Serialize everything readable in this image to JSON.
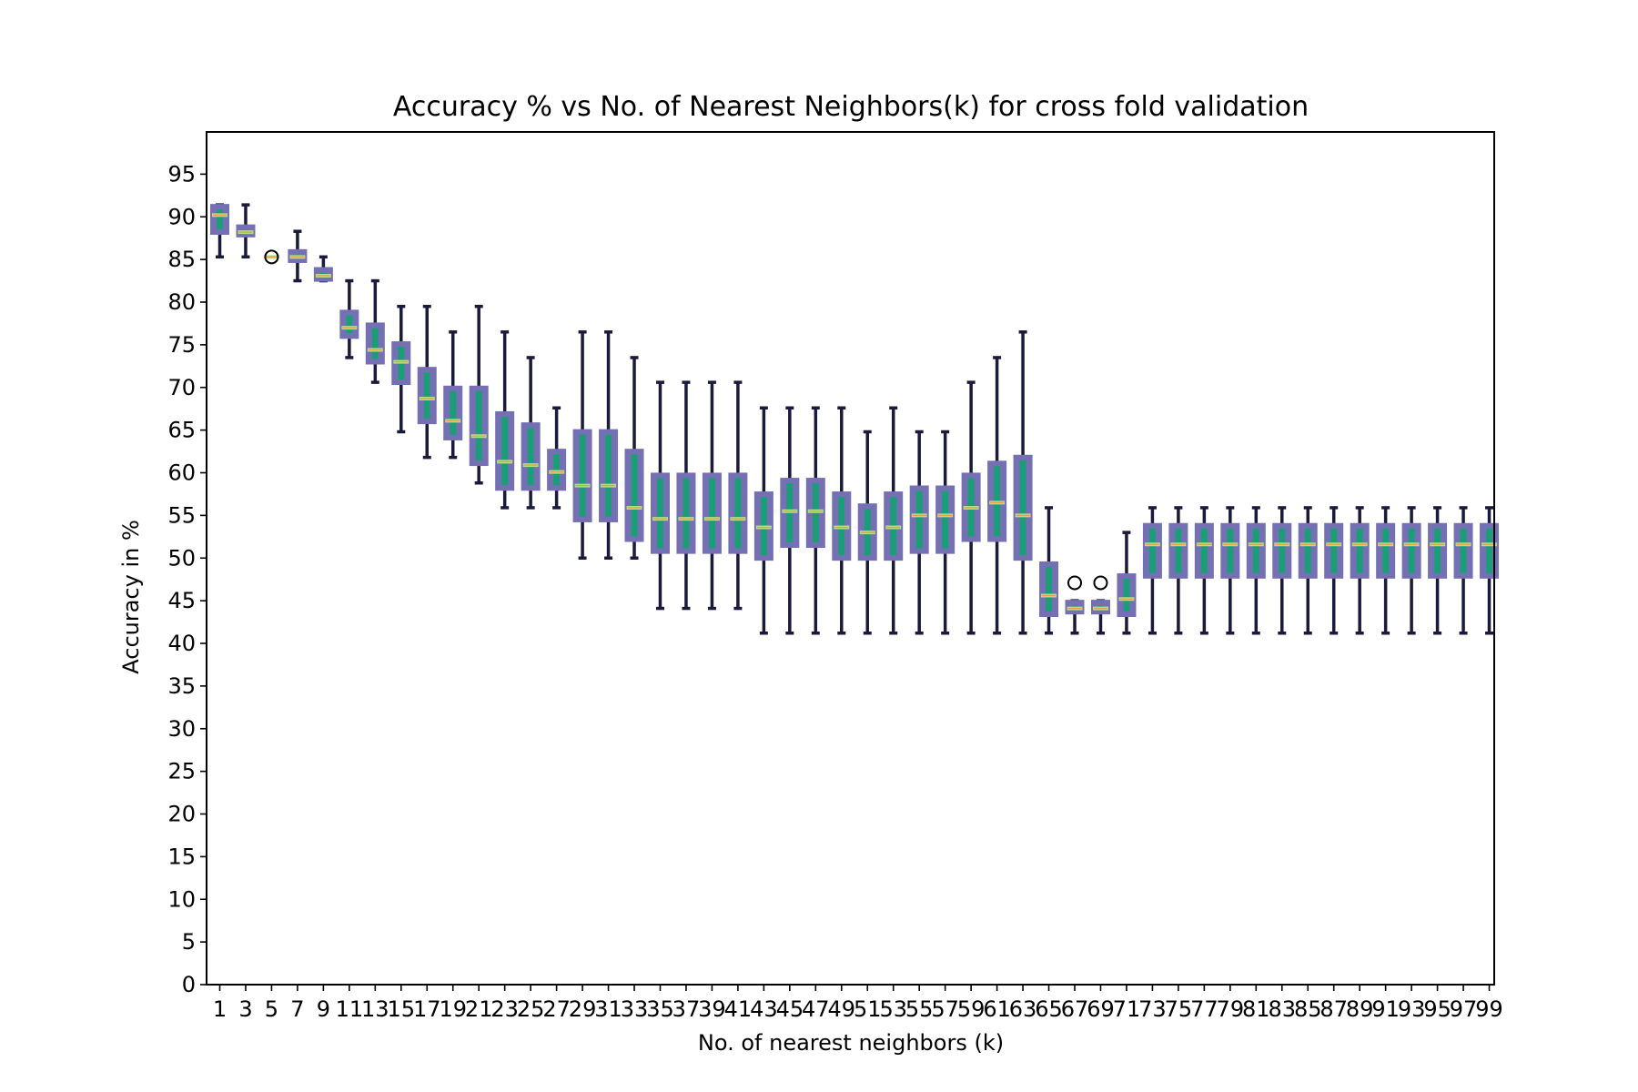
{
  "chart_data": {
    "type": "box",
    "title": "Accuracy % vs No. of Nearest Neighbors(k) for cross fold validation",
    "xlabel": "No. of nearest neighbors (k)",
    "ylabel": "Accuracy in %",
    "ylim": [
      0,
      100
    ],
    "y_ticks": [
      0,
      5,
      10,
      15,
      20,
      25,
      30,
      35,
      40,
      45,
      50,
      55,
      60,
      65,
      70,
      75,
      80,
      85,
      90,
      95
    ],
    "categories": [
      1,
      3,
      5,
      7,
      9,
      11,
      13,
      15,
      17,
      19,
      21,
      23,
      25,
      27,
      29,
      31,
      33,
      35,
      37,
      39,
      41,
      43,
      45,
      47,
      49,
      51,
      53,
      55,
      57,
      59,
      61,
      63,
      65,
      67,
      69,
      71,
      73,
      75,
      77,
      79,
      81,
      83,
      85,
      87,
      89,
      91,
      93,
      95,
      97,
      99
    ],
    "boxes": [
      {
        "k": 1,
        "whisker_low": 85.3,
        "q1": 88.0,
        "median": 90.2,
        "q3": 91.4,
        "whisker_high": 91.4,
        "outliers": []
      },
      {
        "k": 3,
        "whisker_low": 85.3,
        "q1": 87.7,
        "median": 88.2,
        "q3": 89.0,
        "whisker_high": 91.4,
        "outliers": []
      },
      {
        "k": 5,
        "whisker_low": 85.3,
        "q1": 85.3,
        "median": 85.3,
        "q3": 85.3,
        "whisker_high": 85.3,
        "outliers": [
          85.3
        ]
      },
      {
        "k": 7,
        "whisker_low": 82.5,
        "q1": 84.7,
        "median": 85.3,
        "q3": 86.1,
        "whisker_high": 88.3,
        "outliers": []
      },
      {
        "k": 9,
        "whisker_low": 82.5,
        "q1": 82.5,
        "median": 83.1,
        "q3": 84.0,
        "whisker_high": 85.3,
        "outliers": []
      },
      {
        "k": 11,
        "whisker_low": 73.5,
        "q1": 75.8,
        "median": 77.0,
        "q3": 79.0,
        "whisker_high": 82.5,
        "outliers": []
      },
      {
        "k": 13,
        "whisker_low": 70.6,
        "q1": 72.8,
        "median": 74.4,
        "q3": 77.5,
        "whisker_high": 82.5,
        "outliers": []
      },
      {
        "k": 15,
        "whisker_low": 64.8,
        "q1": 70.4,
        "median": 73.0,
        "q3": 75.3,
        "whisker_high": 79.5,
        "outliers": []
      },
      {
        "k": 17,
        "whisker_low": 61.8,
        "q1": 65.8,
        "median": 68.7,
        "q3": 72.3,
        "whisker_high": 79.5,
        "outliers": []
      },
      {
        "k": 19,
        "whisker_low": 61.8,
        "q1": 63.9,
        "median": 66.1,
        "q3": 70.1,
        "whisker_high": 76.5,
        "outliers": []
      },
      {
        "k": 21,
        "whisker_low": 58.8,
        "q1": 60.9,
        "median": 64.3,
        "q3": 70.1,
        "whisker_high": 79.5,
        "outliers": []
      },
      {
        "k": 23,
        "whisker_low": 55.9,
        "q1": 58.0,
        "median": 61.3,
        "q3": 67.1,
        "whisker_high": 76.5,
        "outliers": []
      },
      {
        "k": 25,
        "whisker_low": 55.9,
        "q1": 58.0,
        "median": 60.9,
        "q3": 65.8,
        "whisker_high": 73.5,
        "outliers": []
      },
      {
        "k": 27,
        "whisker_low": 55.9,
        "q1": 58.0,
        "median": 60.1,
        "q3": 62.7,
        "whisker_high": 67.6,
        "outliers": []
      },
      {
        "k": 29,
        "whisker_low": 50.0,
        "q1": 54.3,
        "median": 58.5,
        "q3": 65.0,
        "whisker_high": 76.5,
        "outliers": []
      },
      {
        "k": 31,
        "whisker_low": 50.0,
        "q1": 54.3,
        "median": 58.5,
        "q3": 65.0,
        "whisker_high": 76.5,
        "outliers": []
      },
      {
        "k": 33,
        "whisker_low": 50.0,
        "q1": 52.0,
        "median": 55.9,
        "q3": 62.7,
        "whisker_high": 73.5,
        "outliers": []
      },
      {
        "k": 35,
        "whisker_low": 44.1,
        "q1": 50.6,
        "median": 54.6,
        "q3": 59.9,
        "whisker_high": 70.6,
        "outliers": []
      },
      {
        "k": 37,
        "whisker_low": 44.1,
        "q1": 50.6,
        "median": 54.6,
        "q3": 59.9,
        "whisker_high": 70.6,
        "outliers": []
      },
      {
        "k": 39,
        "whisker_low": 44.1,
        "q1": 50.6,
        "median": 54.6,
        "q3": 59.9,
        "whisker_high": 70.6,
        "outliers": []
      },
      {
        "k": 41,
        "whisker_low": 44.1,
        "q1": 50.6,
        "median": 54.6,
        "q3": 59.9,
        "whisker_high": 70.6,
        "outliers": []
      },
      {
        "k": 43,
        "whisker_low": 41.2,
        "q1": 49.8,
        "median": 53.6,
        "q3": 57.7,
        "whisker_high": 67.6,
        "outliers": []
      },
      {
        "k": 45,
        "whisker_low": 41.2,
        "q1": 51.3,
        "median": 55.5,
        "q3": 59.3,
        "whisker_high": 67.6,
        "outliers": []
      },
      {
        "k": 47,
        "whisker_low": 41.2,
        "q1": 51.3,
        "median": 55.5,
        "q3": 59.3,
        "whisker_high": 67.6,
        "outliers": []
      },
      {
        "k": 49,
        "whisker_low": 41.2,
        "q1": 49.8,
        "median": 53.6,
        "q3": 57.7,
        "whisker_high": 67.6,
        "outliers": []
      },
      {
        "k": 51,
        "whisker_low": 41.2,
        "q1": 49.8,
        "median": 53.0,
        "q3": 56.3,
        "whisker_high": 64.8,
        "outliers": []
      },
      {
        "k": 53,
        "whisker_low": 41.2,
        "q1": 49.8,
        "median": 53.6,
        "q3": 57.7,
        "whisker_high": 67.6,
        "outliers": []
      },
      {
        "k": 55,
        "whisker_low": 41.2,
        "q1": 50.6,
        "median": 55.0,
        "q3": 58.4,
        "whisker_high": 64.8,
        "outliers": []
      },
      {
        "k": 57,
        "whisker_low": 41.2,
        "q1": 50.6,
        "median": 55.0,
        "q3": 58.4,
        "whisker_high": 64.8,
        "outliers": []
      },
      {
        "k": 59,
        "whisker_low": 41.2,
        "q1": 52.0,
        "median": 55.9,
        "q3": 59.9,
        "whisker_high": 70.6,
        "outliers": []
      },
      {
        "k": 61,
        "whisker_low": 41.2,
        "q1": 52.0,
        "median": 56.5,
        "q3": 61.3,
        "whisker_high": 73.5,
        "outliers": []
      },
      {
        "k": 63,
        "whisker_low": 41.2,
        "q1": 49.8,
        "median": 55.0,
        "q3": 62.0,
        "whisker_high": 76.5,
        "outliers": []
      },
      {
        "k": 65,
        "whisker_low": 41.2,
        "q1": 43.2,
        "median": 45.6,
        "q3": 49.5,
        "whisker_high": 55.9,
        "outliers": []
      },
      {
        "k": 67,
        "whisker_low": 41.2,
        "q1": 43.5,
        "median": 44.1,
        "q3": 45.0,
        "whisker_high": 45.0,
        "outliers": [
          47.1
        ]
      },
      {
        "k": 69,
        "whisker_low": 41.2,
        "q1": 43.5,
        "median": 44.1,
        "q3": 45.0,
        "whisker_high": 45.0,
        "outliers": [
          47.1
        ]
      },
      {
        "k": 71,
        "whisker_low": 41.2,
        "q1": 43.2,
        "median": 45.2,
        "q3": 48.1,
        "whisker_high": 53.0,
        "outliers": []
      },
      {
        "k": 73,
        "whisker_low": 41.2,
        "q1": 47.7,
        "median": 51.6,
        "q3": 54.0,
        "whisker_high": 55.9,
        "outliers": []
      },
      {
        "k": 75,
        "whisker_low": 41.2,
        "q1": 47.7,
        "median": 51.6,
        "q3": 54.0,
        "whisker_high": 55.9,
        "outliers": []
      },
      {
        "k": 77,
        "whisker_low": 41.2,
        "q1": 47.7,
        "median": 51.6,
        "q3": 54.0,
        "whisker_high": 55.9,
        "outliers": []
      },
      {
        "k": 79,
        "whisker_low": 41.2,
        "q1": 47.7,
        "median": 51.6,
        "q3": 54.0,
        "whisker_high": 55.9,
        "outliers": []
      },
      {
        "k": 81,
        "whisker_low": 41.2,
        "q1": 47.7,
        "median": 51.6,
        "q3": 54.0,
        "whisker_high": 55.9,
        "outliers": []
      },
      {
        "k": 83,
        "whisker_low": 41.2,
        "q1": 47.7,
        "median": 51.6,
        "q3": 54.0,
        "whisker_high": 55.9,
        "outliers": []
      },
      {
        "k": 85,
        "whisker_low": 41.2,
        "q1": 47.7,
        "median": 51.6,
        "q3": 54.0,
        "whisker_high": 55.9,
        "outliers": []
      },
      {
        "k": 87,
        "whisker_low": 41.2,
        "q1": 47.7,
        "median": 51.6,
        "q3": 54.0,
        "whisker_high": 55.9,
        "outliers": []
      },
      {
        "k": 89,
        "whisker_low": 41.2,
        "q1": 47.7,
        "median": 51.6,
        "q3": 54.0,
        "whisker_high": 55.9,
        "outliers": []
      },
      {
        "k": 91,
        "whisker_low": 41.2,
        "q1": 47.7,
        "median": 51.6,
        "q3": 54.0,
        "whisker_high": 55.9,
        "outliers": []
      },
      {
        "k": 93,
        "whisker_low": 41.2,
        "q1": 47.7,
        "median": 51.6,
        "q3": 54.0,
        "whisker_high": 55.9,
        "outliers": []
      },
      {
        "k": 95,
        "whisker_low": 41.2,
        "q1": 47.7,
        "median": 51.6,
        "q3": 54.0,
        "whisker_high": 55.9,
        "outliers": []
      },
      {
        "k": 97,
        "whisker_low": 41.2,
        "q1": 47.7,
        "median": 51.6,
        "q3": 54.0,
        "whisker_high": 55.9,
        "outliers": []
      },
      {
        "k": 99,
        "whisker_low": 41.2,
        "q1": 47.7,
        "median": 51.6,
        "q3": 54.0,
        "whisker_high": 55.9,
        "outliers": []
      }
    ],
    "grid": false,
    "colors": {
      "box_edge": "#7570b3",
      "box_fill": "#1b9e77",
      "median": "#b2df8a",
      "whisker": "#1a1a3a",
      "outlier": "#000000"
    }
  }
}
